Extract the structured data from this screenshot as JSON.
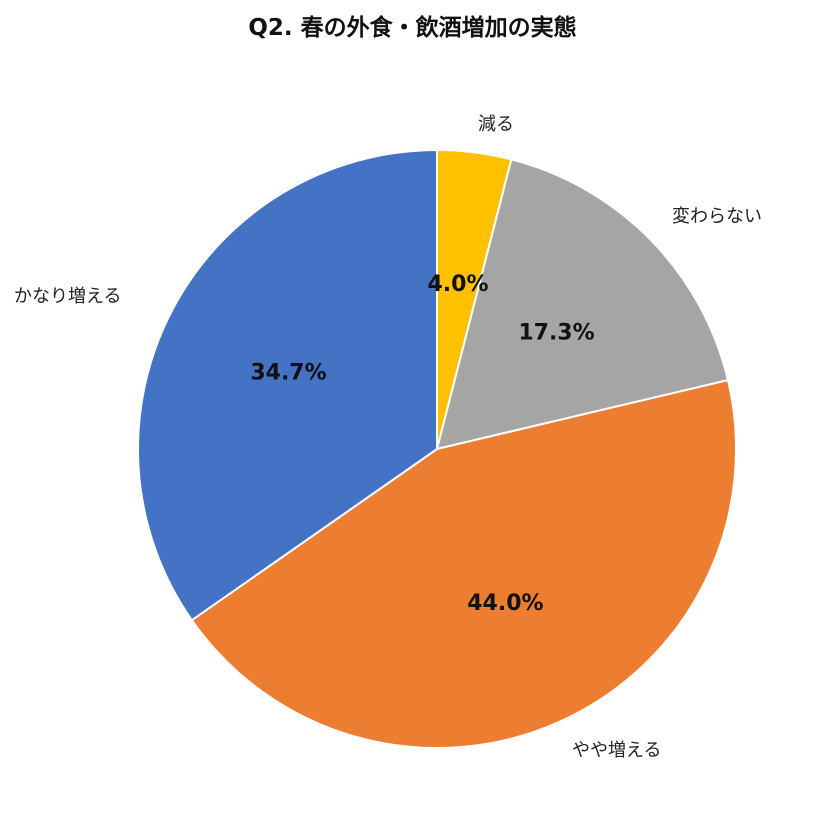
{
  "chart_data": {
    "type": "pie",
    "title": "Q2. 春の外食・飲酒増加の実態",
    "start_angle_deg": 0,
    "direction": "clockwise",
    "slices": [
      {
        "label": "減る",
        "value": 4.0,
        "value_label": "4.0%",
        "color": "#FFC000"
      },
      {
        "label": "変わらない",
        "value": 17.3,
        "value_label": "17.3%",
        "color": "#A5A5A5"
      },
      {
        "label": "やや増える",
        "value": 44.0,
        "value_label": "44.0%",
        "color": "#ED7D31"
      },
      {
        "label": "かなり増える",
        "value": 34.7,
        "value_label": "34.7%",
        "color": "#4472C4"
      }
    ]
  }
}
